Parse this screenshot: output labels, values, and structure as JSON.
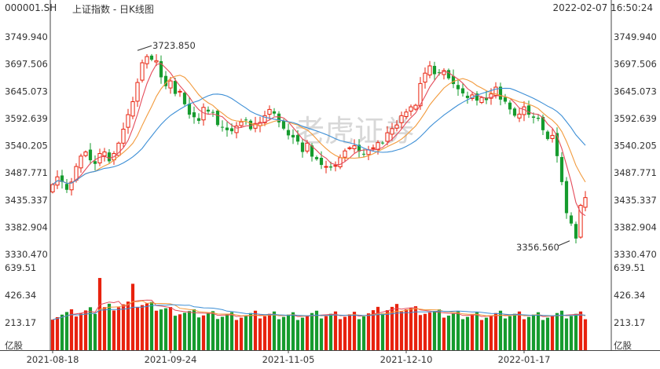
{
  "header": {
    "code": "000001.SH",
    "title": "上证指数 - 日K线图",
    "datetime": "2022-02-07 16:50:24"
  },
  "watermark": "老虎证券",
  "colors": {
    "up": "#e8220e",
    "down": "#169b2e",
    "ma5": "#e44b5a",
    "ma10": "#f29a3c",
    "ma20": "#3d8fd6",
    "axis": "#333333"
  },
  "chart_data": {
    "type": "candlestick",
    "price_axis": {
      "ticks": [
        "3749.940",
        "3697.506",
        "3645.073",
        "3592.639",
        "3540.205",
        "3487.771",
        "3435.337",
        "3382.904",
        "3330.470"
      ],
      "range": [
        3330.47,
        3749.94
      ]
    },
    "volume_axis": {
      "ticks": [
        "639.51",
        "426.34",
        "213.17"
      ],
      "unit_label": "亿股",
      "range": [
        0,
        639.51
      ]
    },
    "date_labels": [
      {
        "text": "2021-08-18",
        "index": 0
      },
      {
        "text": "2021-09-24",
        "index": 25
      },
      {
        "text": "2021-11-05",
        "index": 50
      },
      {
        "text": "2021-12-10",
        "index": 75
      },
      {
        "text": "2022-01-17",
        "index": 100
      }
    ],
    "annotations": {
      "high": {
        "text": "3723.850",
        "index": 18,
        "value": 3723.85
      },
      "low": {
        "text": "3356.560",
        "index": 110,
        "value": 3356.56
      }
    },
    "ma_periods": [
      5,
      10,
      20
    ],
    "closes": [
      3465,
      3480,
      3470,
      3455,
      3470,
      3500,
      3520,
      3528,
      3512,
      3505,
      3525,
      3528,
      3510,
      3525,
      3545,
      3572,
      3600,
      3625,
      3662,
      3700,
      3712,
      3706,
      3704,
      3672,
      3655,
      3665,
      3640,
      3645,
      3620,
      3600,
      3595,
      3588,
      3614,
      3606,
      3605,
      3580,
      3575,
      3570,
      3568,
      3578,
      3586,
      3590,
      3572,
      3583,
      3585,
      3598,
      3610,
      3602,
      3585,
      3573,
      3560,
      3556,
      3548,
      3528,
      3545,
      3519,
      3514,
      3503,
      3500,
      3498,
      3502,
      3517,
      3530,
      3536,
      3540,
      3529,
      3524,
      3532,
      3536,
      3546,
      3545,
      3565,
      3573,
      3580,
      3598,
      3605,
      3615,
      3618,
      3660,
      3680,
      3694,
      3678,
      3680,
      3685,
      3670,
      3659,
      3649,
      3641,
      3632,
      3638,
      3627,
      3633,
      3628,
      3640,
      3653,
      3629,
      3625,
      3610,
      3598,
      3601,
      3615,
      3600,
      3594,
      3592,
      3570,
      3553,
      3560,
      3520,
      3470,
      3410,
      3390,
      3361,
      3425,
      3440
    ]
  }
}
